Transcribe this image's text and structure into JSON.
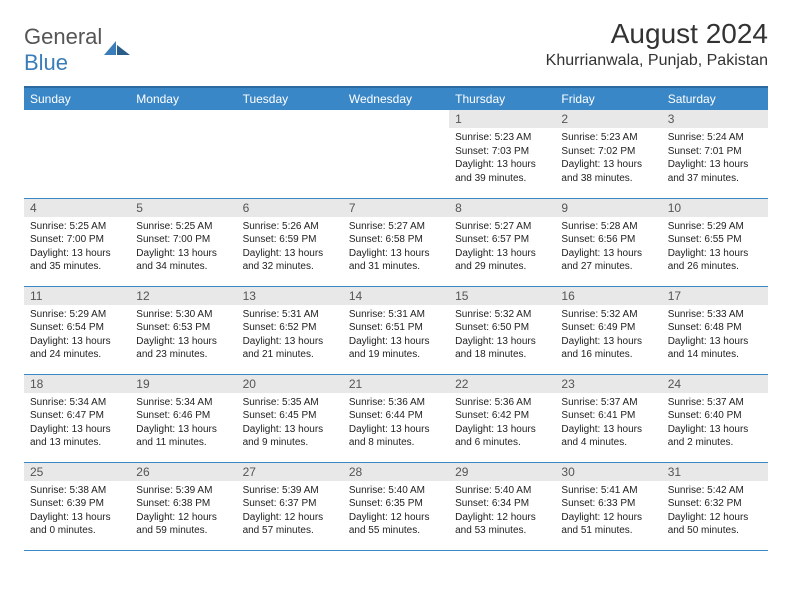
{
  "brand": {
    "word1": "General",
    "word2": "Blue"
  },
  "title": "August 2024",
  "location": "Khurrianwala, Punjab, Pakistan",
  "colors": {
    "header_bg": "#3a87c8",
    "header_border": "#2a6aa0",
    "row_border": "#3a87c8",
    "daynum_bg": "#e8e8e8",
    "text": "#222222",
    "brand_gray": "#555555",
    "brand_blue": "#3a7db9"
  },
  "weekdays": [
    "Sunday",
    "Monday",
    "Tuesday",
    "Wednesday",
    "Thursday",
    "Friday",
    "Saturday"
  ],
  "weeks": [
    [
      {
        "empty": true
      },
      {
        "empty": true
      },
      {
        "empty": true
      },
      {
        "empty": true
      },
      {
        "day": "1",
        "sunrise": "Sunrise: 5:23 AM",
        "sunset": "Sunset: 7:03 PM",
        "daylight": "Daylight: 13 hours and 39 minutes."
      },
      {
        "day": "2",
        "sunrise": "Sunrise: 5:23 AM",
        "sunset": "Sunset: 7:02 PM",
        "daylight": "Daylight: 13 hours and 38 minutes."
      },
      {
        "day": "3",
        "sunrise": "Sunrise: 5:24 AM",
        "sunset": "Sunset: 7:01 PM",
        "daylight": "Daylight: 13 hours and 37 minutes."
      }
    ],
    [
      {
        "day": "4",
        "sunrise": "Sunrise: 5:25 AM",
        "sunset": "Sunset: 7:00 PM",
        "daylight": "Daylight: 13 hours and 35 minutes."
      },
      {
        "day": "5",
        "sunrise": "Sunrise: 5:25 AM",
        "sunset": "Sunset: 7:00 PM",
        "daylight": "Daylight: 13 hours and 34 minutes."
      },
      {
        "day": "6",
        "sunrise": "Sunrise: 5:26 AM",
        "sunset": "Sunset: 6:59 PM",
        "daylight": "Daylight: 13 hours and 32 minutes."
      },
      {
        "day": "7",
        "sunrise": "Sunrise: 5:27 AM",
        "sunset": "Sunset: 6:58 PM",
        "daylight": "Daylight: 13 hours and 31 minutes."
      },
      {
        "day": "8",
        "sunrise": "Sunrise: 5:27 AM",
        "sunset": "Sunset: 6:57 PM",
        "daylight": "Daylight: 13 hours and 29 minutes."
      },
      {
        "day": "9",
        "sunrise": "Sunrise: 5:28 AM",
        "sunset": "Sunset: 6:56 PM",
        "daylight": "Daylight: 13 hours and 27 minutes."
      },
      {
        "day": "10",
        "sunrise": "Sunrise: 5:29 AM",
        "sunset": "Sunset: 6:55 PM",
        "daylight": "Daylight: 13 hours and 26 minutes."
      }
    ],
    [
      {
        "day": "11",
        "sunrise": "Sunrise: 5:29 AM",
        "sunset": "Sunset: 6:54 PM",
        "daylight": "Daylight: 13 hours and 24 minutes."
      },
      {
        "day": "12",
        "sunrise": "Sunrise: 5:30 AM",
        "sunset": "Sunset: 6:53 PM",
        "daylight": "Daylight: 13 hours and 23 minutes."
      },
      {
        "day": "13",
        "sunrise": "Sunrise: 5:31 AM",
        "sunset": "Sunset: 6:52 PM",
        "daylight": "Daylight: 13 hours and 21 minutes."
      },
      {
        "day": "14",
        "sunrise": "Sunrise: 5:31 AM",
        "sunset": "Sunset: 6:51 PM",
        "daylight": "Daylight: 13 hours and 19 minutes."
      },
      {
        "day": "15",
        "sunrise": "Sunrise: 5:32 AM",
        "sunset": "Sunset: 6:50 PM",
        "daylight": "Daylight: 13 hours and 18 minutes."
      },
      {
        "day": "16",
        "sunrise": "Sunrise: 5:32 AM",
        "sunset": "Sunset: 6:49 PM",
        "daylight": "Daylight: 13 hours and 16 minutes."
      },
      {
        "day": "17",
        "sunrise": "Sunrise: 5:33 AM",
        "sunset": "Sunset: 6:48 PM",
        "daylight": "Daylight: 13 hours and 14 minutes."
      }
    ],
    [
      {
        "day": "18",
        "sunrise": "Sunrise: 5:34 AM",
        "sunset": "Sunset: 6:47 PM",
        "daylight": "Daylight: 13 hours and 13 minutes."
      },
      {
        "day": "19",
        "sunrise": "Sunrise: 5:34 AM",
        "sunset": "Sunset: 6:46 PM",
        "daylight": "Daylight: 13 hours and 11 minutes."
      },
      {
        "day": "20",
        "sunrise": "Sunrise: 5:35 AM",
        "sunset": "Sunset: 6:45 PM",
        "daylight": "Daylight: 13 hours and 9 minutes."
      },
      {
        "day": "21",
        "sunrise": "Sunrise: 5:36 AM",
        "sunset": "Sunset: 6:44 PM",
        "daylight": "Daylight: 13 hours and 8 minutes."
      },
      {
        "day": "22",
        "sunrise": "Sunrise: 5:36 AM",
        "sunset": "Sunset: 6:42 PM",
        "daylight": "Daylight: 13 hours and 6 minutes."
      },
      {
        "day": "23",
        "sunrise": "Sunrise: 5:37 AM",
        "sunset": "Sunset: 6:41 PM",
        "daylight": "Daylight: 13 hours and 4 minutes."
      },
      {
        "day": "24",
        "sunrise": "Sunrise: 5:37 AM",
        "sunset": "Sunset: 6:40 PM",
        "daylight": "Daylight: 13 hours and 2 minutes."
      }
    ],
    [
      {
        "day": "25",
        "sunrise": "Sunrise: 5:38 AM",
        "sunset": "Sunset: 6:39 PM",
        "daylight": "Daylight: 13 hours and 0 minutes."
      },
      {
        "day": "26",
        "sunrise": "Sunrise: 5:39 AM",
        "sunset": "Sunset: 6:38 PM",
        "daylight": "Daylight: 12 hours and 59 minutes."
      },
      {
        "day": "27",
        "sunrise": "Sunrise: 5:39 AM",
        "sunset": "Sunset: 6:37 PM",
        "daylight": "Daylight: 12 hours and 57 minutes."
      },
      {
        "day": "28",
        "sunrise": "Sunrise: 5:40 AM",
        "sunset": "Sunset: 6:35 PM",
        "daylight": "Daylight: 12 hours and 55 minutes."
      },
      {
        "day": "29",
        "sunrise": "Sunrise: 5:40 AM",
        "sunset": "Sunset: 6:34 PM",
        "daylight": "Daylight: 12 hours and 53 minutes."
      },
      {
        "day": "30",
        "sunrise": "Sunrise: 5:41 AM",
        "sunset": "Sunset: 6:33 PM",
        "daylight": "Daylight: 12 hours and 51 minutes."
      },
      {
        "day": "31",
        "sunrise": "Sunrise: 5:42 AM",
        "sunset": "Sunset: 6:32 PM",
        "daylight": "Daylight: 12 hours and 50 minutes."
      }
    ]
  ]
}
